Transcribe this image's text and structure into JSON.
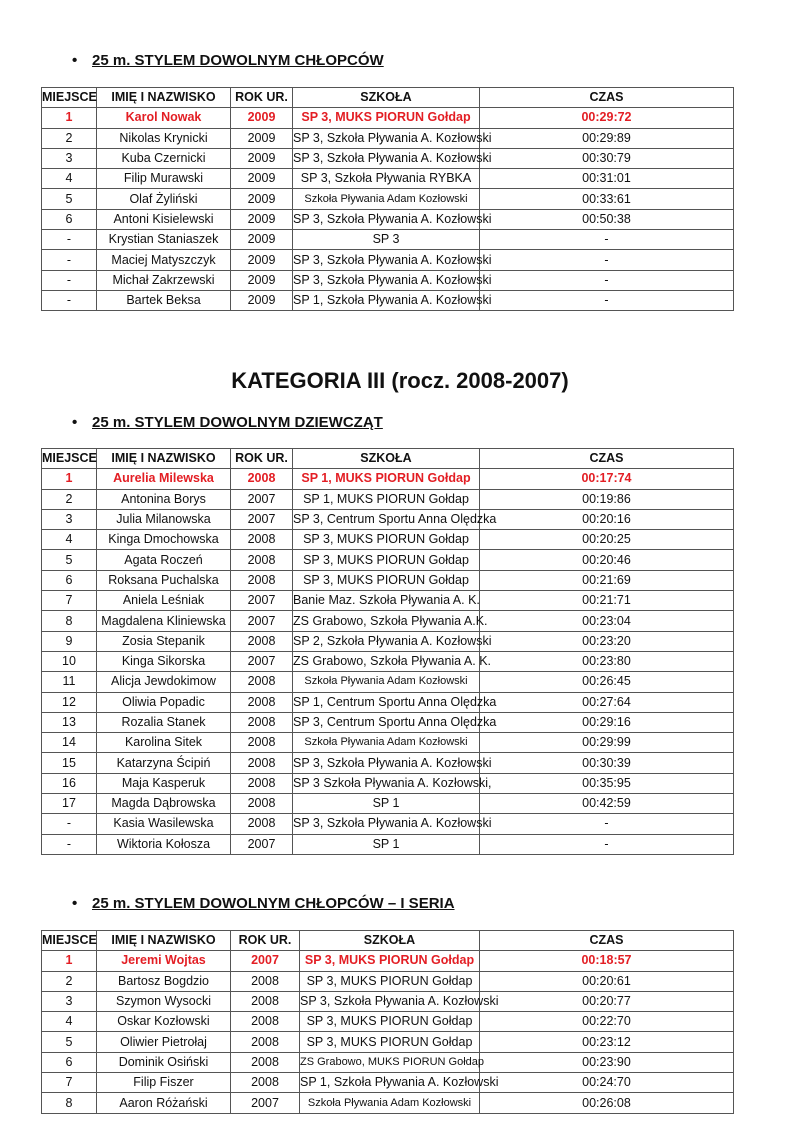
{
  "columns": [
    "MIEJSCE",
    "IMIĘ I NAZWISKO",
    "ROK UR.",
    "SZKOŁA",
    "CZAS"
  ],
  "accent_color": "#e31e24",
  "bullet_icon": "•",
  "sections": [
    {
      "heading": "25 m. STYLEM DOWOLNYM CHŁOPCÓW",
      "rows": [
        [
          "1",
          "Karol Nowak",
          "2009",
          "SP 3, MUKS PIORUN Gołdap",
          "00:29:72"
        ],
        [
          "2",
          "Nikolas Krynicki",
          "2009",
          "SP 3, Szkoła Pływania A. Kozłowski",
          "00:29:89"
        ],
        [
          "3",
          "Kuba Czernicki",
          "2009",
          "SP 3, Szkoła Pływania A.  Kozłowski",
          "00:30:79"
        ],
        [
          "4",
          "Filip Murawski",
          "2009",
          "SP 3, Szkoła Pływania RYBKA",
          "00:31:01"
        ],
        [
          "5",
          "Olaf Żyliński",
          "2009",
          "Szkoła Pływania Adam Kozłowski",
          "00:33:61"
        ],
        [
          "6",
          "Antoni Kisielewski",
          "2009",
          "SP 3, Szkoła Pływania A. Kozłowski",
          "00:50:38"
        ],
        [
          "-",
          "Krystian Staniaszek",
          "2009",
          "SP 3",
          "-"
        ],
        [
          "-",
          "Maciej Matyszczyk",
          "2009",
          "SP 3, Szkoła Pływania A.  Kozłowski",
          "-"
        ],
        [
          "-",
          "Michał Zakrzewski",
          "2009",
          "SP 3, Szkoła Pływania A. Kozłowski",
          "-"
        ],
        [
          "-",
          "Bartek Beksa",
          "2009",
          "SP 1, Szkoła Pływania A. Kozłowski",
          "-"
        ]
      ]
    },
    {
      "heading": "25 m. STYLEM DOWOLNYM DZIEWCZĄT",
      "rows": [
        [
          "1",
          "Aurelia Milewska",
          "2008",
          "SP 1, MUKS PIORUN Gołdap",
          "00:17:74"
        ],
        [
          "2",
          "Antonina Borys",
          "2007",
          "SP 1, MUKS PIORUN Gołdap",
          "00:19:86"
        ],
        [
          "3",
          "Julia Milanowska",
          "2007",
          "SP 3, Centrum Sportu Anna Olędzka",
          "00:20:16"
        ],
        [
          "4",
          "Kinga Dmochowska",
          "2008",
          "SP 3, MUKS PIORUN Gołdap",
          "00:20:25"
        ],
        [
          "5",
          "Agata Roczeń",
          "2008",
          "SP 3, MUKS PIORUN Gołdap",
          "00:20:46"
        ],
        [
          "6",
          "Roksana Puchalska",
          "2008",
          "SP 3, MUKS PIORUN Gołdap",
          "00:21:69"
        ],
        [
          "7",
          "Aniela Leśniak",
          "2007",
          "Banie Maz. Szkoła Pływania A. K.",
          "00:21:71"
        ],
        [
          "8",
          "Magdalena Kliniewska",
          "2007",
          "ZS Grabowo, Szkoła Pływania A.K.",
          "00:23:04"
        ],
        [
          "9",
          "Zosia Stepanik",
          "2008",
          "SP 2, Szkoła Pływania A. Kozłowski",
          "00:23:20"
        ],
        [
          "10",
          "Kinga Sikorska",
          "2007",
          "ZS Grabowo, Szkoła Pływania A. K.",
          "00:23:80"
        ],
        [
          "11",
          "Alicja Jewdokimow",
          "2008",
          "Szkoła Pływania Adam Kozłowski",
          "00:26:45"
        ],
        [
          "12",
          "Oliwia Popadic",
          "2008",
          "SP 1, Centrum Sportu Anna Olędzka",
          "00:27:64"
        ],
        [
          "13",
          "Rozalia Stanek",
          "2008",
          "SP 3, Centrum Sportu Anna Olędzka",
          "00:29:16"
        ],
        [
          "14",
          "Karolina Sitek",
          "2008",
          "Szkoła Pływania Adam Kozłowski",
          "00:29:99"
        ],
        [
          "15",
          "Katarzyna Ścipiń",
          "2008",
          "SP 3, Szkoła Pływania A. Kozłowski",
          "00:30:39"
        ],
        [
          "16",
          "Maja Kasperuk",
          "2008",
          "SP 3 Szkoła Pływania A. Kozłowski,",
          "00:35:95"
        ],
        [
          "17",
          "Magda Dąbrowska",
          "2008",
          "SP 1",
          "00:42:59"
        ],
        [
          "-",
          "Kasia Wasilewska",
          "2008",
          "SP 3, Szkoła Pływania A.  Kozłowski",
          "-"
        ],
        [
          "-",
          "Wiktoria Kołosza",
          "2007",
          "SP 1",
          "-"
        ]
      ]
    },
    {
      "heading": "25 m. STYLEM DOWOLNYM CHŁOPCÓW – I SERIA",
      "rows": [
        [
          "1",
          "Jeremi Wojtas",
          "2007",
          "SP 3, MUKS PIORUN Gołdap",
          "00:18:57"
        ],
        [
          "2",
          "Bartosz Bogdzio",
          "2008",
          "SP 3, MUKS PIORUN Gołdap",
          "00:20:61"
        ],
        [
          "3",
          "Szymon Wysocki",
          "2008",
          "SP 3, Szkoła Pływania A. Kozłowski",
          "00:20:77"
        ],
        [
          "4",
          "Oskar Kozłowski",
          "2008",
          "SP 3, MUKS PIORUN Gołdap",
          "00:22:70"
        ],
        [
          "5",
          "Oliwier Pietrołaj",
          "2008",
          "SP 3, MUKS PIORUN Gołdap",
          "00:23:12"
        ],
        [
          "6",
          "Dominik Osiński",
          "2008",
          "ZS Grabowo, MUKS PIORUN Gołdap",
          "00:23:90"
        ],
        [
          "7",
          "Filip Fiszer",
          "2008",
          "SP 1, Szkoła Pływania A. Kozłowski",
          "00:24:70"
        ],
        [
          "8",
          "Aaron Różański",
          "2007",
          "Szkoła Pływania Adam Kozłowski",
          "00:26:08"
        ]
      ]
    }
  ],
  "category_title": "KATEGORIA III (rocz. 2008-2007)"
}
